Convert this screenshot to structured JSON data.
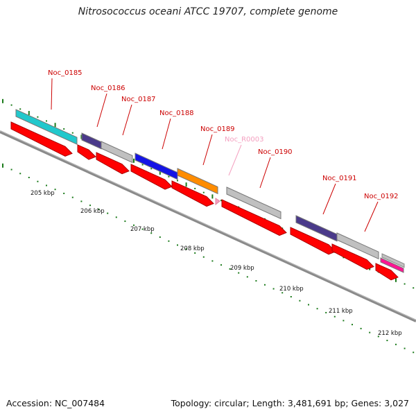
{
  "title": "Nitrosococcus oceani ATCC 19707, complete genome",
  "footer": {
    "accession": "Accession: NC_007484",
    "summary": "Topology: circular; Length: 3,481,691 bp; Genes: 3,027"
  },
  "colors": {
    "backbone": "#8a8a8a",
    "cds": "#ff0000",
    "label": "#cc0000",
    "rna_label": "#f4a0c0",
    "tick": "#1a7a1a"
  },
  "axis_labels": [
    "205 kbp",
    "206 kbp",
    "207 kbp",
    "208 kbp",
    "209 kbp",
    "210 kbp",
    "211 kbp",
    "212 kbp"
  ],
  "genes": [
    {
      "name": "Noc_0185",
      "type": "gene"
    },
    {
      "name": "Noc_0186",
      "type": "gene"
    },
    {
      "name": "Noc_0187",
      "type": "gene"
    },
    {
      "name": "Noc_0188",
      "type": "gene"
    },
    {
      "name": "Noc_0189",
      "type": "gene"
    },
    {
      "name": "Noc_R0003",
      "type": "rna"
    },
    {
      "name": "Noc_0190",
      "type": "gene"
    },
    {
      "name": "Noc_0191",
      "type": "gene"
    },
    {
      "name": "Noc_0192",
      "type": "gene"
    }
  ],
  "cog_blocks": [
    {
      "gene": "Noc_0185",
      "color": "#22c8cc"
    },
    {
      "gene": "Noc_0186",
      "color": "#4a3a8a"
    },
    {
      "gene": "Noc_0187",
      "color": "#c0c0c0"
    },
    {
      "gene": "Noc_0188",
      "color": "#1414e6"
    },
    {
      "gene": "Noc_0189",
      "color": "#ff8c00"
    },
    {
      "gene": "Noc_0190",
      "color": "#c0c0c0"
    },
    {
      "gene": "Noc_0191a",
      "color": "#4a3a8a"
    },
    {
      "gene": "Noc_0191b",
      "color": "#c0c0c0"
    },
    {
      "gene": "Noc_0192",
      "color": "#ff1493"
    }
  ]
}
